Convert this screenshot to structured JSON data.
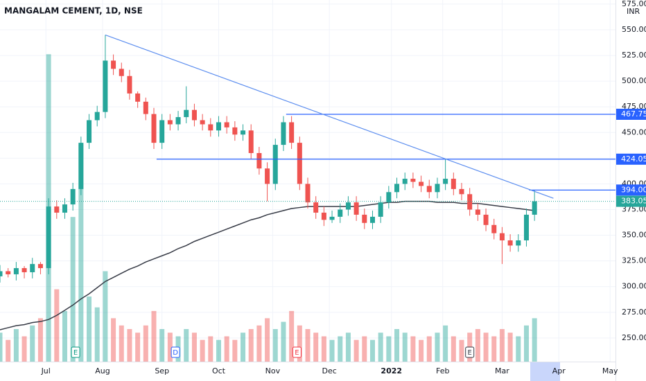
{
  "chart_data": {
    "type": "candlestick",
    "title": "MANGALAM CEMENT, 1D, NSE",
    "currency": "INR",
    "x": [
      0,
      3,
      6,
      9,
      12,
      15,
      18,
      21,
      24,
      27,
      30,
      33,
      36,
      39,
      42,
      45,
      48,
      51,
      54,
      57,
      60,
      63,
      66,
      69,
      72,
      75,
      78,
      81,
      84,
      87,
      90,
      93,
      96,
      99,
      102,
      105,
      108,
      111,
      114,
      117,
      120,
      123,
      126,
      129,
      132,
      135,
      138,
      141,
      144,
      147,
      150,
      153,
      156,
      159,
      162,
      165,
      168,
      171,
      174,
      177,
      180,
      183,
      186,
      189,
      192,
      195,
      198
    ],
    "open": [
      310,
      315,
      312,
      318,
      314,
      322,
      318,
      378,
      372,
      380,
      395,
      440,
      462,
      470,
      520,
      512,
      505,
      488,
      480,
      468,
      440,
      462,
      458,
      465,
      472,
      462,
      458,
      452,
      460,
      455,
      448,
      452,
      430,
      415,
      400,
      438,
      460,
      440,
      400,
      382,
      372,
      365,
      368,
      375,
      382,
      370,
      362,
      368,
      382,
      392,
      400,
      405,
      402,
      398,
      392,
      400,
      405,
      395,
      390,
      375,
      370,
      360,
      352,
      345,
      340,
      345,
      370
    ],
    "high": [
      321,
      318,
      324,
      320,
      328,
      324,
      386,
      384,
      386,
      401,
      446,
      468,
      476,
      545,
      526,
      518,
      511,
      490,
      484,
      474,
      468,
      468,
      471,
      495,
      478,
      468,
      464,
      466,
      466,
      461,
      458,
      458,
      436,
      421,
      444,
      466,
      466,
      446,
      406,
      388,
      378,
      374,
      381,
      388,
      388,
      376,
      374,
      388,
      398,
      406,
      411,
      411,
      408,
      404,
      406,
      424,
      411,
      401,
      396,
      381,
      376,
      366,
      358,
      351,
      351,
      376,
      394
    ],
    "low": [
      304,
      309,
      306,
      308,
      308,
      312,
      312,
      366,
      366,
      374,
      389,
      434,
      456,
      464,
      506,
      499,
      482,
      474,
      462,
      434,
      434,
      452,
      452,
      459,
      456,
      452,
      446,
      446,
      449,
      442,
      442,
      424,
      409,
      383,
      394,
      432,
      434,
      394,
      376,
      366,
      359,
      362,
      362,
      369,
      364,
      356,
      356,
      362,
      376,
      386,
      394,
      396,
      392,
      386,
      386,
      394,
      389,
      384,
      369,
      364,
      354,
      346,
      322,
      334,
      334,
      339,
      364
    ],
    "close": [
      315,
      312,
      318,
      314,
      322,
      318,
      378,
      372,
      380,
      395,
      440,
      462,
      470,
      520,
      512,
      505,
      488,
      480,
      468,
      440,
      462,
      458,
      465,
      472,
      462,
      458,
      452,
      460,
      455,
      448,
      452,
      430,
      415,
      400,
      438,
      460,
      440,
      400,
      382,
      372,
      365,
      368,
      375,
      382,
      370,
      362,
      368,
      382,
      392,
      400,
      405,
      402,
      398,
      392,
      400,
      405,
      395,
      390,
      375,
      370,
      360,
      352,
      345,
      340,
      345,
      370,
      383.05
    ],
    "volume": [
      8,
      6,
      9,
      7,
      10,
      12,
      85,
      20,
      14,
      40,
      60,
      18,
      15,
      25,
      12,
      10,
      9,
      8,
      10,
      14,
      9,
      8,
      7,
      9,
      8,
      6,
      7,
      6,
      7,
      6,
      8,
      9,
      10,
      12,
      9,
      11,
      14,
      10,
      9,
      8,
      7,
      6,
      7,
      8,
      6,
      7,
      6,
      8,
      7,
      9,
      8,
      7,
      6,
      7,
      8,
      10,
      7,
      6,
      8,
      9,
      8,
      7,
      9,
      8,
      7,
      10,
      12
    ],
    "volume_lim": [
      0,
      100
    ],
    "up_color": "#26a69a",
    "down_color": "#ef5350",
    "ma": {
      "color": "#363a45",
      "values": [
        258,
        260,
        262,
        263,
        265,
        266,
        268,
        272,
        277,
        282,
        288,
        293,
        299,
        305,
        309,
        313,
        317,
        320,
        324,
        327,
        330,
        333,
        337,
        340,
        344,
        347,
        350,
        353,
        356,
        359,
        362,
        365,
        367,
        370,
        372,
        374,
        376,
        377,
        378,
        378,
        378,
        378,
        378,
        378,
        378,
        379,
        380,
        381,
        382,
        382,
        383,
        383,
        383,
        383,
        382,
        382,
        382,
        381,
        381,
        381,
        380,
        379,
        378,
        377,
        376,
        375,
        374
      ]
    },
    "xlim": [
      0,
      228
    ],
    "xticks": [
      {
        "value": 17,
        "label": "Jul"
      },
      {
        "value": 38,
        "label": "Aug"
      },
      {
        "value": 60,
        "label": "Sep"
      },
      {
        "value": 81,
        "label": "Oct"
      },
      {
        "value": 101,
        "label": "Nov"
      },
      {
        "value": 122,
        "label": "Dec"
      },
      {
        "value": 145,
        "label": "2022"
      },
      {
        "value": 164,
        "label": "Feb"
      },
      {
        "value": 186,
        "label": "Mar"
      },
      {
        "value": 207,
        "label": "Apr"
      },
      {
        "value": 226,
        "label": "May"
      }
    ],
    "ylim": [
      227,
      579
    ],
    "yticks": [
      {
        "value": 250,
        "label": "250.00"
      },
      {
        "value": 275,
        "label": "275.00"
      },
      {
        "value": 300,
        "label": "300.00"
      },
      {
        "value": 325,
        "label": "325.00"
      },
      {
        "value": 350,
        "label": "350.00"
      },
      {
        "value": 375,
        "label": "375.00"
      },
      {
        "value": 400,
        "label": "400.00"
      },
      {
        "value": 425,
        "label": "425.00"
      },
      {
        "value": 450,
        "label": "450.00"
      },
      {
        "value": 475,
        "label": "475.00"
      },
      {
        "value": 500,
        "label": "500.00"
      },
      {
        "value": 525,
        "label": "525.00"
      },
      {
        "value": 550,
        "label": "550.00"
      },
      {
        "value": 575,
        "label": "575.00"
      }
    ],
    "grid": true,
    "levels": [
      {
        "value": 467.75,
        "start": 106,
        "color": "#2962ff"
      },
      {
        "value": 424.05,
        "start": 58,
        "color": "#2962ff"
      },
      {
        "value": 394,
        "label": "394.00",
        "start": 196,
        "color": "#2962ff"
      }
    ],
    "last_price": 383.05,
    "trendline": {
      "x": [
        39,
        205
      ],
      "y": [
        545,
        386
      ],
      "color": "#5b8def"
    },
    "events": [
      {
        "label": "E",
        "x": 28,
        "color": "#089981"
      },
      {
        "label": "D",
        "x": 65,
        "color": "#2962ff"
      },
      {
        "label": "E",
        "x": 110,
        "color": "#f23645"
      },
      {
        "label": "E",
        "x": 174,
        "color": "#363a45"
      }
    ]
  }
}
